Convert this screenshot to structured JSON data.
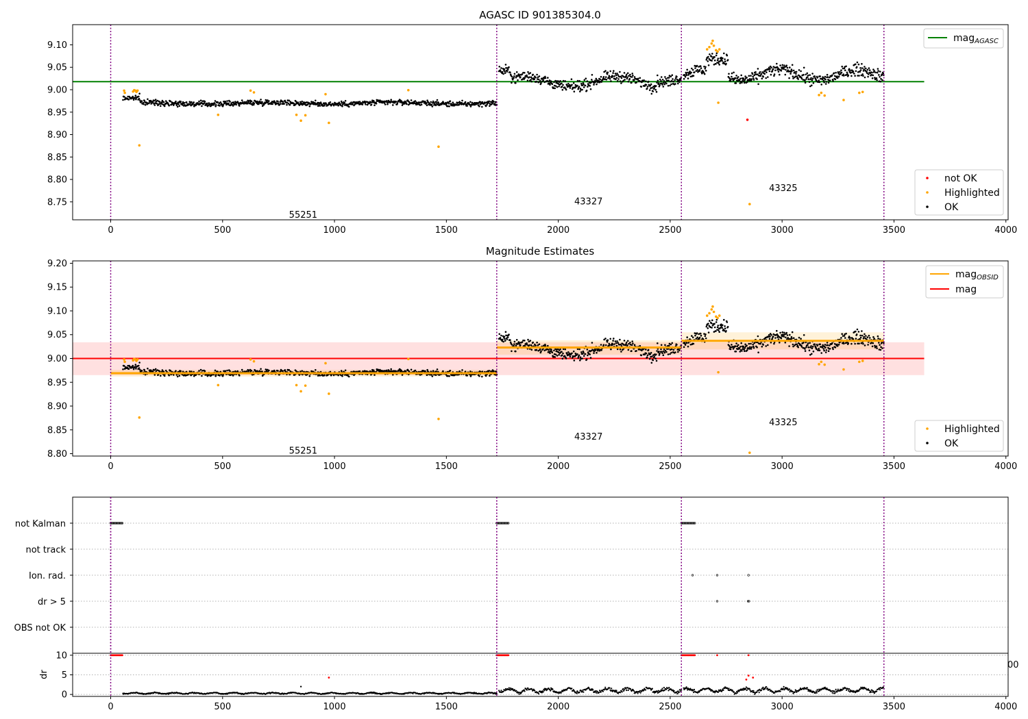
{
  "figure": {
    "title": "AGASC ID 901385304.0",
    "colors": {
      "ok": "#000000",
      "highlighted": "#ffa500",
      "not_ok": "#ff0000",
      "agasc_line": "#008000",
      "obsid_line": "#ffa500",
      "mag_line": "#ff0000",
      "obsid_boundary": "#800080"
    }
  },
  "chart_data": [
    {
      "type": "scatter",
      "title": "AGASC ID 901385304.0",
      "xlim": [
        -170,
        4010
      ],
      "ylim": [
        8.71,
        9.145
      ],
      "xticks": [
        0,
        500,
        1000,
        1500,
        2000,
        2500,
        3000,
        3500,
        4000
      ],
      "yticks": [
        8.75,
        8.8,
        8.85,
        8.9,
        8.95,
        9.0,
        9.05,
        9.1
      ],
      "mag_agasc": 9.018,
      "mag_agasc_range": [
        -170,
        3635
      ],
      "legend_lines": [
        {
          "label": "mag",
          "sub": "AGASC",
          "color": "#008000"
        }
      ],
      "legend_points": [
        {
          "label": "not OK",
          "color": "#ff0000"
        },
        {
          "label": "Highlighted",
          "color": "#ffa500"
        },
        {
          "label": "OK",
          "color": "#000000"
        }
      ],
      "obsid_boundaries": [
        0,
        1725,
        2550,
        3455
      ],
      "obsid_labels": [
        {
          "text": "55251",
          "x": 860,
          "y": 8.722
        },
        {
          "text": "43327",
          "x": 2135,
          "y": 8.752
        },
        {
          "text": "43325",
          "x": 3005,
          "y": 8.782
        }
      ],
      "segments": [
        {
          "x": [
            55,
            1725
          ],
          "mean": 8.97,
          "scatter": 0.007
        },
        {
          "x": [
            1735,
            2550
          ],
          "mean": 9.022,
          "scatter": 0.014
        },
        {
          "x": [
            2560,
            3455
          ],
          "mean": 9.033,
          "scatter": 0.016
        }
      ],
      "highlighted_points": [
        [
          60,
          8.998
        ],
        [
          63,
          8.993
        ],
        [
          100,
          8.996
        ],
        [
          105,
          8.999
        ],
        [
          110,
          8.998
        ],
        [
          115,
          8.995
        ],
        [
          120,
          8.998
        ],
        [
          128,
          8.876
        ],
        [
          480,
          8.944
        ],
        [
          625,
          8.998
        ],
        [
          640,
          8.994
        ],
        [
          830,
          8.944
        ],
        [
          850,
          8.931
        ],
        [
          870,
          8.943
        ],
        [
          960,
          8.99
        ],
        [
          975,
          8.926
        ],
        [
          1330,
          8.999
        ],
        [
          1465,
          8.873
        ],
        [
          2665,
          9.09
        ],
        [
          2675,
          9.095
        ],
        [
          2685,
          9.103
        ],
        [
          2690,
          9.109
        ],
        [
          2695,
          9.098
        ],
        [
          2705,
          9.088
        ],
        [
          2712,
          9.085
        ],
        [
          2720,
          9.09
        ],
        [
          2715,
          8.971
        ],
        [
          2855,
          8.745
        ],
        [
          3165,
          8.988
        ],
        [
          3175,
          8.993
        ],
        [
          3190,
          8.987
        ],
        [
          3275,
          8.977
        ],
        [
          3345,
          8.993
        ],
        [
          3360,
          8.995
        ]
      ],
      "not_ok_points": [
        [
          2845,
          8.933
        ]
      ]
    },
    {
      "type": "scatter",
      "title": "Magnitude Estimates",
      "xlim": [
        -170,
        4010
      ],
      "ylim": [
        8.795,
        9.205
      ],
      "xticks": [
        0,
        500,
        1000,
        1500,
        2000,
        2500,
        3000,
        3500,
        4000
      ],
      "yticks": [
        8.8,
        8.85,
        8.9,
        8.95,
        9.0,
        9.05,
        9.1,
        9.15,
        9.2
      ],
      "mag": 9.0,
      "mag_band": [
        8.965,
        9.034
      ],
      "mag_range": [
        -170,
        3635
      ],
      "mag_obsid": [
        {
          "x": [
            0,
            1725
          ],
          "value": 8.969,
          "band": [
            8.962,
            8.976
          ]
        },
        {
          "x": [
            1725,
            2550
          ],
          "value": 9.023,
          "band": [
            9.008,
            9.038
          ]
        },
        {
          "x": [
            2550,
            3455
          ],
          "value": 9.037,
          "band": [
            9.019,
            9.055
          ]
        }
      ],
      "legend_lines": [
        {
          "label": "mag",
          "sub": "OBSID",
          "color": "#ffa500"
        },
        {
          "label": "mag",
          "sub": "",
          "color": "#ff0000"
        }
      ],
      "legend_points": [
        {
          "label": "Highlighted",
          "color": "#ffa500"
        },
        {
          "label": "OK",
          "color": "#000000"
        }
      ],
      "obsid_boundaries": [
        0,
        1725,
        2550,
        3455
      ],
      "obsid_labels": [
        {
          "text": "55251",
          "x": 860,
          "y": 8.807
        },
        {
          "text": "43327",
          "x": 2135,
          "y": 8.837
        },
        {
          "text": "43325",
          "x": 3005,
          "y": 8.867
        }
      ],
      "highlighted_points": [
        [
          60,
          8.998
        ],
        [
          63,
          8.993
        ],
        [
          100,
          8.996
        ],
        [
          105,
          8.999
        ],
        [
          110,
          8.998
        ],
        [
          115,
          8.995
        ],
        [
          120,
          8.998
        ],
        [
          128,
          8.876
        ],
        [
          480,
          8.944
        ],
        [
          625,
          8.998
        ],
        [
          640,
          8.994
        ],
        [
          830,
          8.944
        ],
        [
          850,
          8.931
        ],
        [
          870,
          8.943
        ],
        [
          960,
          8.99
        ],
        [
          975,
          8.926
        ],
        [
          1330,
          8.999
        ],
        [
          1465,
          8.873
        ],
        [
          2665,
          9.09
        ],
        [
          2675,
          9.095
        ],
        [
          2685,
          9.103
        ],
        [
          2690,
          9.109
        ],
        [
          2695,
          9.098
        ],
        [
          2705,
          9.088
        ],
        [
          2712,
          9.085
        ],
        [
          2720,
          9.09
        ],
        [
          2715,
          8.971
        ],
        [
          2855,
          8.802
        ],
        [
          3165,
          8.988
        ],
        [
          3175,
          8.993
        ],
        [
          3190,
          8.987
        ],
        [
          3275,
          8.977
        ],
        [
          3345,
          8.993
        ],
        [
          3360,
          8.995
        ]
      ]
    },
    {
      "type": "scatter",
      "title": "",
      "flag_rows": [
        "not Kalman",
        "not track",
        "Ion. rad.",
        "dr > 5",
        "OBS not OK"
      ],
      "xlim": [
        -170,
        4010
      ],
      "obsid_boundaries": [
        0,
        1725,
        2550,
        3455
      ],
      "flags": {
        "not Kalman": [
          [
            0,
            55
          ],
          [
            1725,
            1780
          ],
          [
            2550,
            2610
          ]
        ],
        "not track": [],
        "Ion. rad.": [
          2600,
          2710,
          2850
        ],
        "dr > 5": [
          2710,
          2848,
          2852
        ],
        "OBS not OK": []
      }
    },
    {
      "type": "scatter",
      "ylabel": "dr",
      "xlim": [
        -170,
        4010
      ],
      "ylim": [
        -0.5,
        10.5
      ],
      "xticks": [
        0,
        500,
        1000,
        1500,
        2000,
        2500,
        3000,
        3500,
        4000
      ],
      "yticks": [
        0,
        5,
        10
      ],
      "edge_label": "00",
      "obsid_boundaries": [
        0,
        1725,
        2550,
        3455
      ],
      "not_ok_runs": [
        [
          0,
          55
        ],
        [
          1725,
          1780
        ],
        [
          2550,
          2610
        ]
      ],
      "not_ok_value": 10,
      "not_ok_points": [
        [
          2710,
          10
        ],
        [
          2850,
          10
        ],
        [
          2840,
          3.8
        ],
        [
          2850,
          4.8
        ],
        [
          2870,
          4.3
        ],
        [
          975,
          4.3
        ]
      ],
      "outlier_points": [
        [
          850,
          2.0
        ]
      ],
      "dr_levels": [
        {
          "x": [
            55,
            1725
          ],
          "mean": 0.3,
          "amp": 0.25
        },
        {
          "x": [
            1735,
            2550
          ],
          "mean": 1.0,
          "amp": 0.8
        },
        {
          "x": [
            2560,
            3455
          ],
          "mean": 1.1,
          "amp": 0.8
        }
      ]
    }
  ]
}
